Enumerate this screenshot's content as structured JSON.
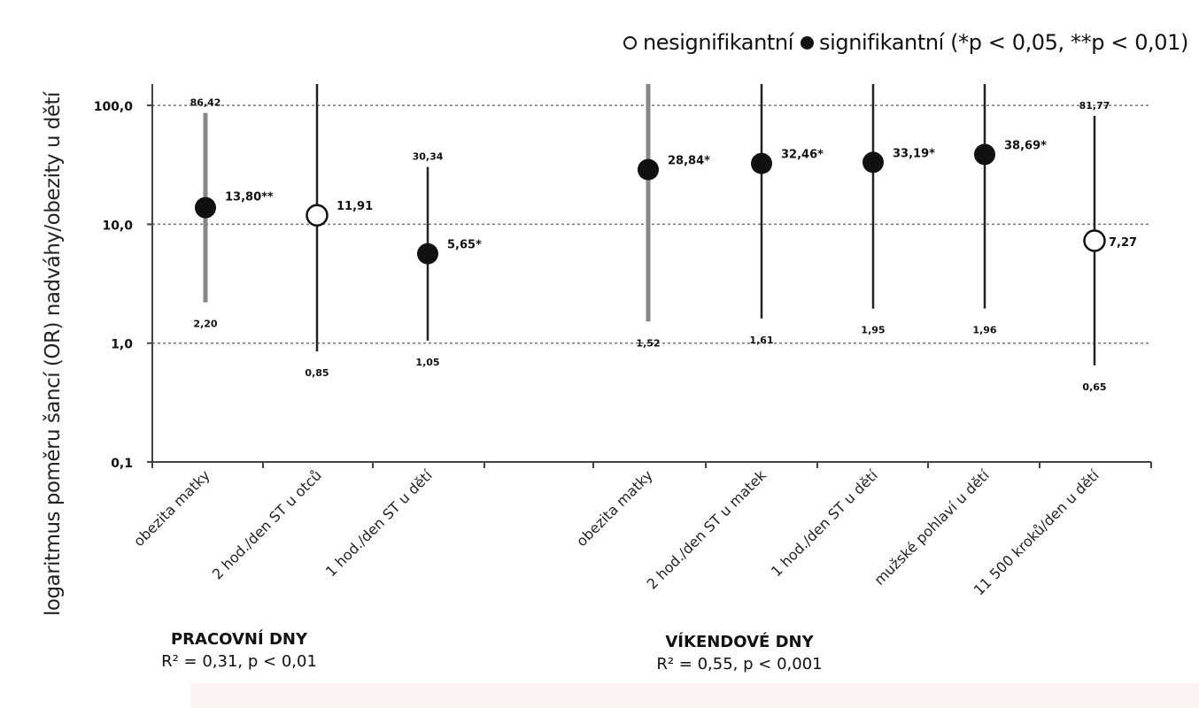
{
  "chart_data": {
    "type": "scatter",
    "subtype": "error-bar / forest plot",
    "ylabel": "logaritmus poměru šancí (OR) nadváhy/obezity u dětí",
    "y_scale": "log",
    "ylim": [
      0.1,
      100
    ],
    "yticks": [
      "0,1",
      "1,0",
      "10,0",
      "100,0"
    ],
    "ytick_values": [
      0.1,
      1,
      10,
      100
    ],
    "grid": "horizontal dotted",
    "legend": {
      "position": "top-right",
      "open_label": "nesignifikantní",
      "filled_label": "signifikantní (*p < 0,05, **p < 0,01)"
    },
    "points": [
      {
        "category": "obezita matky",
        "or": 13.8,
        "label": "13,80**",
        "lower": 2.2,
        "lower_label": "2,20",
        "upper": 86.42,
        "upper_label": "86,42",
        "significant": true,
        "bar": "gray"
      },
      {
        "category": "2 hod./den ST u otců",
        "or": 11.91,
        "label": "11,91",
        "lower": 0.85,
        "lower_label": "0,85",
        "upper": 100,
        "upper_label": "",
        "significant": false,
        "bar": "black"
      },
      {
        "category": "1 hod./den ST u dětí",
        "or": 5.65,
        "label": "5,65*",
        "lower": 1.05,
        "lower_label": "1,05",
        "upper": 30.34,
        "upper_label": "30,34",
        "significant": true,
        "bar": "black"
      },
      {
        "category": "obezita matky",
        "or": 28.84,
        "label": "28,84*",
        "lower": 1.52,
        "lower_label": "1,52",
        "upper": 100,
        "upper_label": "",
        "significant": true,
        "bar": "gray"
      },
      {
        "category": "2 hod./den ST u matek",
        "or": 32.46,
        "label": "32,46*",
        "lower": 1.61,
        "lower_label": "1,61",
        "upper": 100,
        "upper_label": "",
        "significant": true,
        "bar": "black"
      },
      {
        "category": "1 hod./den ST u dětí",
        "or": 33.19,
        "label": "33,19*",
        "lower": 1.95,
        "lower_label": "1,95",
        "upper": 100,
        "upper_label": "",
        "significant": true,
        "bar": "black"
      },
      {
        "category": "mužské pohlaví u dětí",
        "or": 38.69,
        "label": "38,69*",
        "lower": 1.96,
        "lower_label": "1,96",
        "upper": 100,
        "upper_label": "",
        "significant": true,
        "bar": "black"
      },
      {
        "category": "11 500 kroků/den u dětí",
        "or": 7.27,
        "label": "7,27",
        "lower": 0.65,
        "lower_label": "0,65",
        "upper": 81.77,
        "upper_label": "81,77",
        "significant": false,
        "bar": "black"
      }
    ],
    "groups": [
      {
        "name": "PRACOVNÍ DNY",
        "stat": "R² = 0,31, p < 0,01"
      },
      {
        "name": "VÍKENDOVÉ DNY",
        "stat": "R² = 0,55, p < 0,001"
      }
    ]
  }
}
